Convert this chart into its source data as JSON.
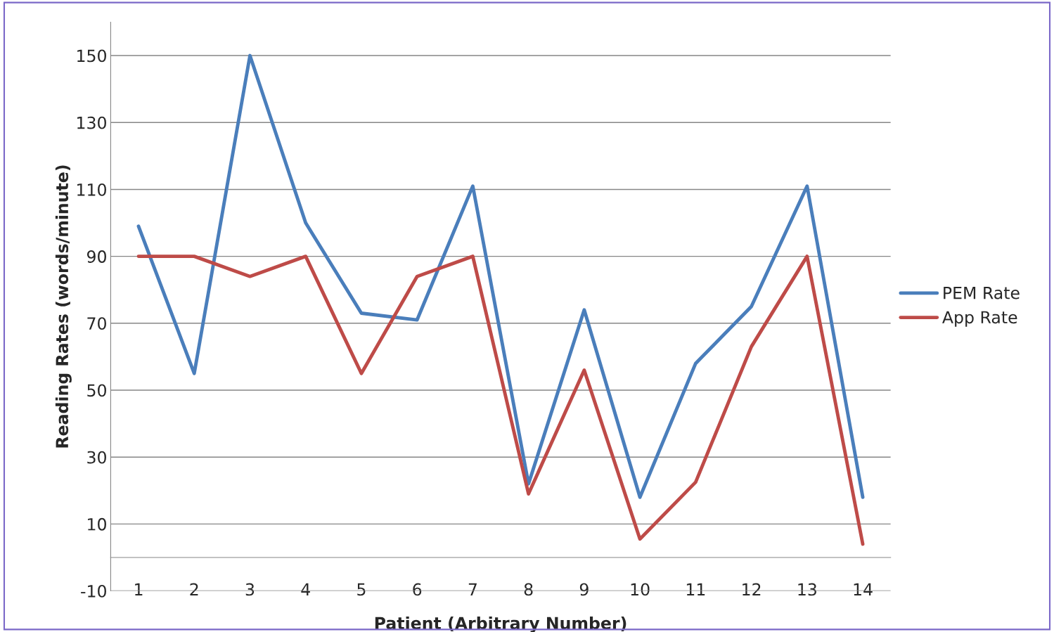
{
  "chart_data": {
    "type": "line",
    "xlabel": "Patient (Arbitrary Number)",
    "ylabel": "Reading Rates (words/minute)",
    "categories": [
      "1",
      "2",
      "3",
      "4",
      "5",
      "6",
      "7",
      "8",
      "9",
      "10",
      "11",
      "12",
      "13",
      "14"
    ],
    "series": [
      {
        "name": "PEM Rate",
        "color": "#4a7ebb",
        "values": [
          99,
          55,
          150,
          100,
          73,
          71,
          111,
          22,
          74,
          18,
          58,
          75,
          111,
          18
        ]
      },
      {
        "name": "App Rate",
        "color": "#be4b48",
        "values": [
          90,
          90,
          84,
          90,
          55,
          84,
          90,
          19,
          56,
          5.5,
          22.5,
          63,
          90,
          4
        ]
      }
    ],
    "ylim": [
      -10,
      160
    ],
    "yticks": [
      -10,
      10,
      30,
      50,
      70,
      90,
      110,
      130,
      150
    ],
    "grid": "y",
    "legend": "right",
    "marker": "none",
    "line_style": "solid"
  }
}
